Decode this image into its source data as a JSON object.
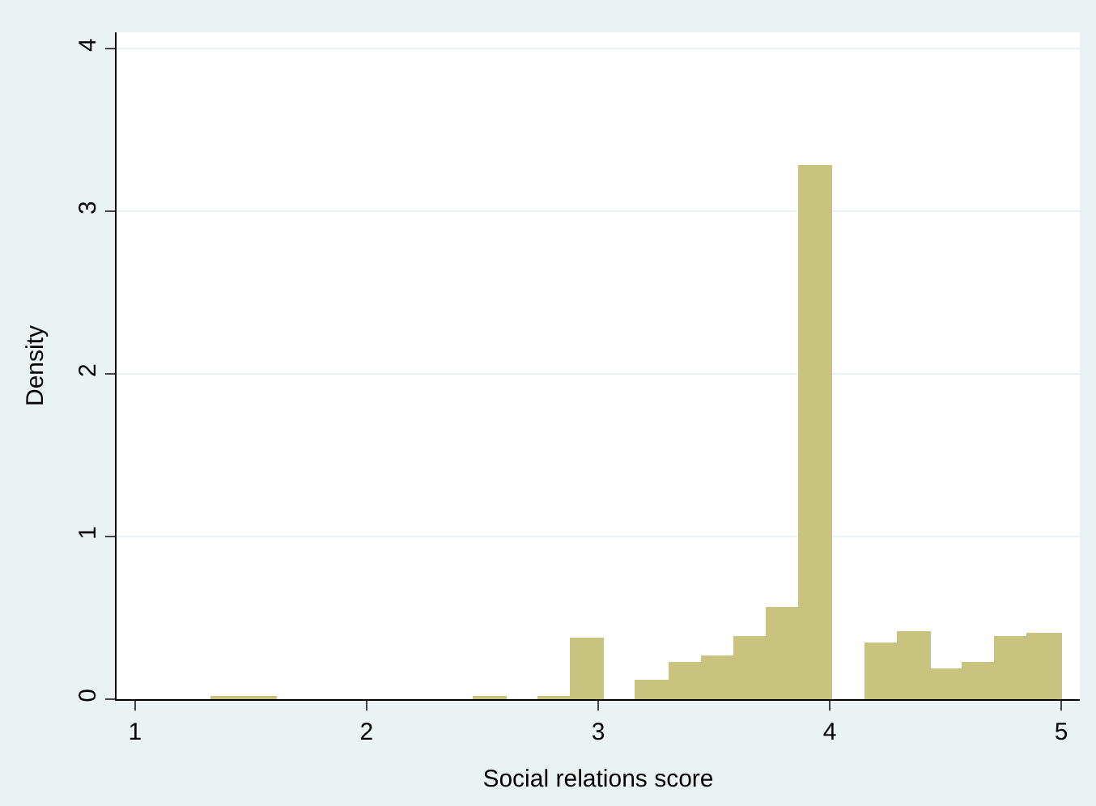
{
  "chart_data": {
    "type": "histogram",
    "xlabel": "Social relations score",
    "ylabel": "Density",
    "bins": [
      1.333,
      1.474,
      1.615,
      1.756,
      1.897,
      2.038,
      2.179,
      2.321,
      2.462,
      2.603,
      2.744,
      2.885,
      3.026,
      3.167,
      3.308,
      3.449,
      3.59,
      3.731,
      3.872,
      4.013,
      4.154,
      4.295,
      4.436,
      4.577,
      4.718,
      4.859,
      5.0
    ],
    "values": [
      0.01,
      0.01,
      0,
      0,
      0,
      0,
      0,
      0,
      0.01,
      0,
      0.01,
      0.37,
      0,
      0.11,
      0.22,
      0.26,
      0.38,
      0.56,
      3.27,
      0,
      0.34,
      0.41,
      0.18,
      0.22,
      0.38,
      0.4
    ],
    "color": "#c9c380",
    "xlim": [
      0.92,
      5.08
    ],
    "xticks": [
      1,
      2,
      3,
      4,
      5
    ],
    "ylim": [
      0,
      4.1
    ],
    "yticks": [
      0,
      1,
      2,
      3,
      4
    ],
    "grid": "y"
  }
}
